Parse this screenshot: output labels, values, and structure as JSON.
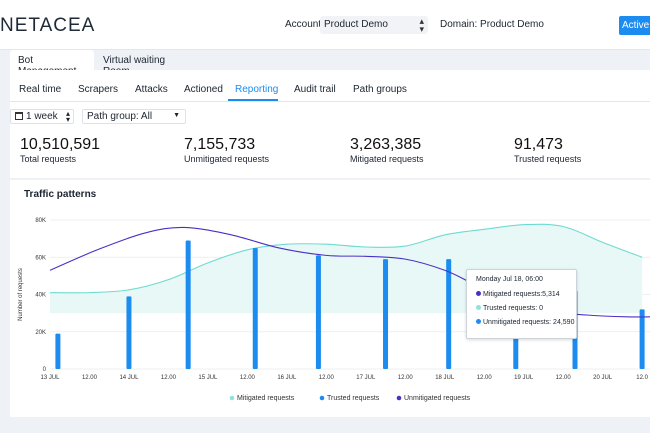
{
  "header": {
    "logo": "NETACEA",
    "account_label": "Account:",
    "account_value": "Product Demo",
    "domain_label": "Domain:",
    "domain_value": "Product Demo",
    "status_button": "Active"
  },
  "section_tabs": [
    {
      "label": "Bot Management",
      "active": true
    },
    {
      "label": "Virtual waiting Room",
      "active": false
    }
  ],
  "nav_tabs": [
    {
      "label": "Real time"
    },
    {
      "label": "Scrapers"
    },
    {
      "label": "Attacks"
    },
    {
      "label": "Actioned"
    },
    {
      "label": "Reporting",
      "active": true
    },
    {
      "label": "Audit trail"
    },
    {
      "label": "Path groups"
    }
  ],
  "filters": {
    "period": "1 week",
    "path_group": "Path group: All"
  },
  "stats": [
    {
      "value": "10,510,591",
      "label": "Total requests"
    },
    {
      "value": "7,155,733",
      "label": "Unmitigated requests"
    },
    {
      "value": "3,263,385",
      "label": "Mitigated requests"
    },
    {
      "value": "91,473",
      "label": "Trusted requests"
    }
  ],
  "colors": {
    "accent": "#1d8cf0",
    "mitigated": "#6fdad2",
    "trusted": "#1d8cf0",
    "unmitigated": "#4b30c6"
  },
  "tooltip": {
    "title": "Monday Jul 18, 06:00",
    "rows": [
      {
        "label": "Mitigated requests:",
        "value": "5,314",
        "color": "#4b30c6"
      },
      {
        "label": "Trusted requests:",
        "value": "0",
        "color": "#8ee3dd"
      },
      {
        "label": "Unmitigated requests:",
        "value": "24,590",
        "color": "#1d8cf0"
      }
    ]
  },
  "chart_data": {
    "type": "bar+area+line",
    "title": "Traffic patterns",
    "ylabel": "Number of requests",
    "xlabel": "",
    "ylim": [
      0,
      80000
    ],
    "y_ticks": [
      0,
      20000,
      40000,
      60000,
      80000
    ],
    "y_tick_labels": [
      "0",
      "20K",
      "40K",
      "60K",
      "80K"
    ],
    "x_tick_labels": [
      "13 JUL",
      "12.00",
      "14 JUL",
      "12.00",
      "15 JUL",
      "12.00",
      "16 JUL",
      "12.00",
      "17 JUL",
      "12.00",
      "18 JUL",
      "12.00",
      "19 JUL",
      "12.00",
      "20 JUL",
      "12.0"
    ],
    "grid": true,
    "legend_position": "bottom",
    "series": [
      {
        "name": "Mitigated requests",
        "type": "area",
        "color": "#6fdad2",
        "points": [
          [
            0.0,
            41000
          ],
          [
            0.5,
            41000
          ],
          [
            1.0,
            42500
          ],
          [
            1.5,
            48000
          ],
          [
            2.0,
            57000
          ],
          [
            2.5,
            64000
          ],
          [
            3.0,
            67000
          ],
          [
            3.5,
            67000
          ],
          [
            4.0,
            65500
          ],
          [
            4.5,
            66000
          ],
          [
            5.0,
            72000
          ],
          [
            5.5,
            75000
          ],
          [
            6.0,
            77500
          ],
          [
            6.5,
            76500
          ],
          [
            7.0,
            68000
          ],
          [
            7.5,
            60000
          ]
        ]
      },
      {
        "name": "Trusted requests",
        "type": "bar",
        "color": "#1d8cf0",
        "points": [
          [
            0.1,
            19000
          ],
          [
            1.0,
            39000
          ],
          [
            1.75,
            69000
          ],
          [
            2.6,
            65000
          ],
          [
            3.4,
            61000
          ],
          [
            4.25,
            59000
          ],
          [
            5.05,
            59000
          ],
          [
            5.9,
            42000
          ],
          [
            6.65,
            42000
          ],
          [
            7.5,
            32000
          ]
        ]
      },
      {
        "name": "Unmitigated requests",
        "type": "line",
        "color": "#4b30c6",
        "points": [
          [
            0.0,
            53000
          ],
          [
            0.6,
            64000
          ],
          [
            1.2,
            73000
          ],
          [
            1.7,
            76000
          ],
          [
            2.3,
            72000
          ],
          [
            2.9,
            65000
          ],
          [
            3.5,
            61000
          ],
          [
            4.0,
            60500
          ],
          [
            4.5,
            59000
          ],
          [
            5.0,
            53000
          ],
          [
            5.4,
            45000
          ],
          [
            5.8,
            38000
          ],
          [
            6.3,
            31000
          ],
          [
            6.8,
            29000
          ],
          [
            7.3,
            28000
          ],
          [
            7.6,
            28000
          ]
        ]
      }
    ]
  }
}
